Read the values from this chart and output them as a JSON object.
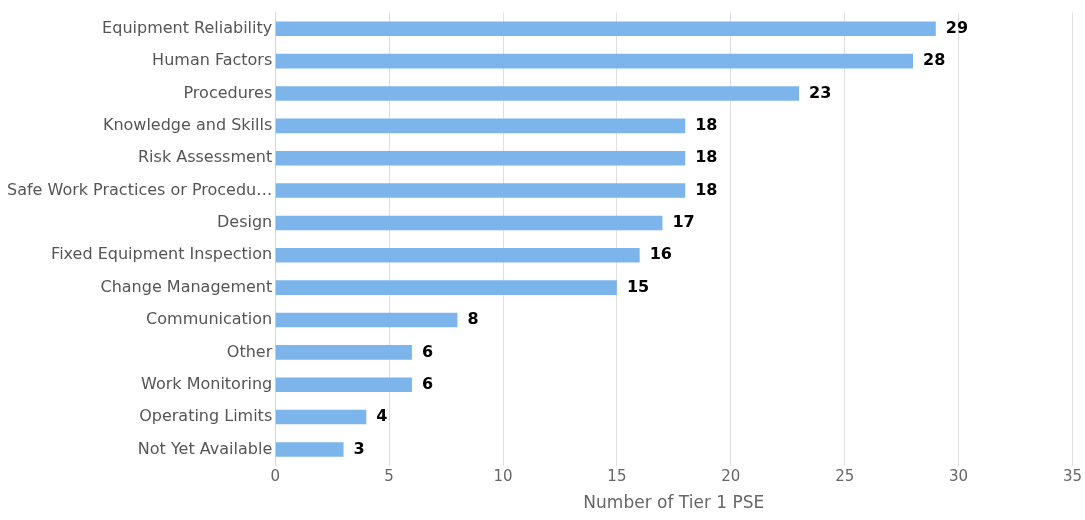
{
  "chart_data": {
    "type": "bar",
    "orientation": "horizontal",
    "xlabel": "Number of Tier 1 PSE",
    "categories": [
      "Equipment Reliability",
      "Human Factors",
      "Procedures",
      "Knowledge and Skills",
      "Risk Assessment",
      "Safe Work Practices or Procedu…",
      "Design",
      "Fixed Equipment Inspection",
      "Change Management",
      "Communication",
      "Other",
      "Work Monitoring",
      "Operating Limits",
      "Not Yet Available"
    ],
    "values": [
      29,
      28,
      23,
      18,
      18,
      18,
      17,
      16,
      15,
      8,
      6,
      6,
      4,
      3
    ],
    "color": "#7cb5ec",
    "xlim": [
      0,
      35
    ],
    "xticks": [
      0,
      5,
      10,
      15,
      20,
      25,
      30,
      35
    ],
    "grid": "x",
    "data_labels": true,
    "legend": false
  }
}
